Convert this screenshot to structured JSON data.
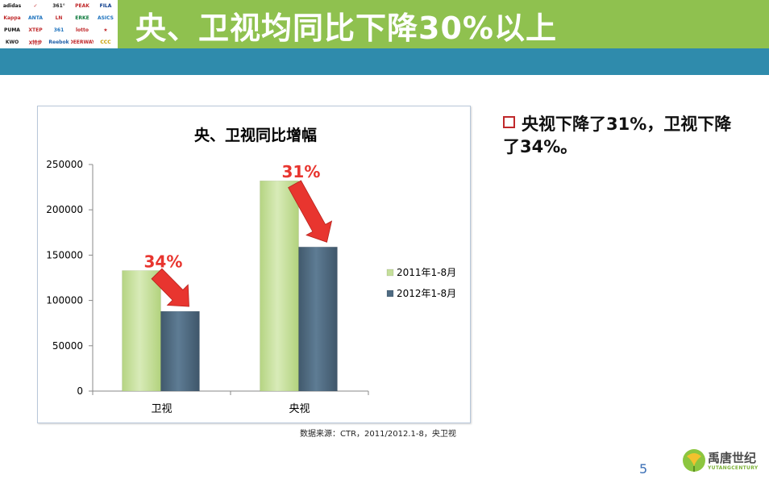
{
  "header": {
    "title": "央、卫视均同比下降30%以上",
    "logos": [
      {
        "name": "adidas",
        "text": "adidas",
        "color": "#111"
      },
      {
        "name": "nike",
        "text": "✓",
        "color": "#c0292b"
      },
      {
        "name": "361",
        "text": "361°",
        "color": "#222"
      },
      {
        "name": "peak",
        "text": "PEAK",
        "color": "#c0292b"
      },
      {
        "name": "fila",
        "text": "FILA",
        "color": "#0b3c8c"
      },
      {
        "name": "kappa",
        "text": "Kappa",
        "color": "#c0292b"
      },
      {
        "name": "anta",
        "text": "ANTA",
        "color": "#1e73be"
      },
      {
        "name": "lining",
        "text": "LN",
        "color": "#c0292b"
      },
      {
        "name": "erke",
        "text": "ERKE",
        "color": "#0f7b3e"
      },
      {
        "name": "asics",
        "text": "ASICS",
        "color": "#1e73be"
      },
      {
        "name": "puma",
        "text": "PUMA",
        "color": "#111"
      },
      {
        "name": "xtep",
        "text": "XTEP",
        "color": "#c0292b"
      },
      {
        "name": "361b",
        "text": "361",
        "color": "#1e73be"
      },
      {
        "name": "lotto",
        "text": "lotto",
        "color": "#c0292b"
      },
      {
        "name": "converse",
        "text": "★",
        "color": "#c0292b"
      },
      {
        "name": "kwo",
        "text": "KWO",
        "color": "#222"
      },
      {
        "name": "xtep2",
        "text": "X特步",
        "color": "#c0292b"
      },
      {
        "name": "reebok",
        "text": "Reebok",
        "color": "#1e5fa8"
      },
      {
        "name": "deerway",
        "text": "DEERWAY",
        "color": "#c0292b"
      },
      {
        "name": "canterbury",
        "text": "CCC",
        "color": "#c8a000"
      }
    ]
  },
  "chart_data": {
    "type": "bar",
    "title": "央、卫视同比增幅",
    "categories": [
      "卫视",
      "央视"
    ],
    "series": [
      {
        "name": "2011年1-8月",
        "values": [
          133000,
          232000
        ],
        "color": "#c5df9b"
      },
      {
        "name": "2012年1-8月",
        "values": [
          88000,
          159000
        ],
        "color": "#4f6b82"
      }
    ],
    "ylim": [
      0,
      250000
    ],
    "yticks": [
      "0",
      "50000",
      "100000",
      "150000",
      "200000",
      "250000"
    ],
    "annotations": [
      "34%",
      "31%"
    ],
    "legend": "right",
    "grid": false
  },
  "source": "数据来源：CTR，2011/2012.1-8，央卫视",
  "bullet": {
    "text": "央视下降了31%，卫视下降了34%。"
  },
  "page_number": "5",
  "brand": {
    "cn": "禹唐世纪",
    "en": "YUTANGCENTURY",
    "color": "#7db23a"
  }
}
